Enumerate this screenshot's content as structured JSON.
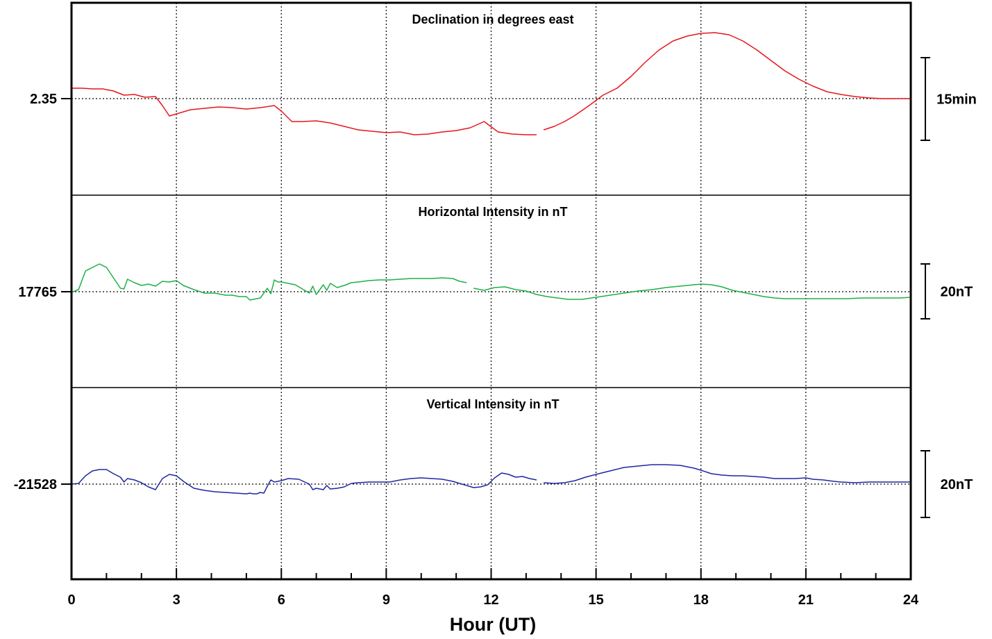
{
  "chart_data": {
    "type": "line",
    "xlabel": "Hour (UT)",
    "xlim": [
      0,
      24
    ],
    "x_ticks": [
      "0",
      "3",
      "6",
      "9",
      "12",
      "15",
      "18",
      "21",
      "24"
    ],
    "grid": true,
    "panels": [
      {
        "title": "Declination in degrees east",
        "baseline_label": "2.35",
        "scale_label": "15min",
        "color": "#e8141c",
        "series": [
          {
            "x": [
              0,
              0.3,
              0.6,
              0.9,
              1.2,
              1.5,
              1.8,
              2.1,
              2.4,
              2.6,
              2.8,
              3.0,
              3.4,
              3.8,
              4.2,
              4.6,
              5.0,
              5.4,
              5.8,
              6.0,
              6.3,
              6.6,
              7.0,
              7.4,
              7.8,
              8.2,
              8.6,
              9.0,
              9.4,
              9.8,
              10.2,
              10.6,
              11.0,
              11.4,
              11.8,
              12.2,
              12.6,
              13.0,
              13.3
            ],
            "y": [
              15,
              15,
              14,
              14,
              11,
              5,
              6,
              2,
              3,
              -10,
              -25,
              -22,
              -16,
              -14,
              -12,
              -13,
              -15,
              -13,
              -10,
              -18,
              -33,
              -33,
              -32,
              -35,
              -40,
              -45,
              -47,
              -49,
              -48,
              -52,
              -51,
              -48,
              -46,
              -42,
              -33,
              -48,
              -51,
              -52,
              -52
            ]
          },
          {
            "x": [
              13.5,
              13.8,
              14.1,
              14.4,
              14.8,
              15.2,
              15.6,
              16.0,
              16.4,
              16.8,
              17.2,
              17.6,
              18.0,
              18.4,
              18.8,
              19.2,
              19.6,
              20.0,
              20.4,
              20.8,
              21.2,
              21.6,
              22.0,
              22.4,
              22.8,
              23.2,
              23.6,
              24.0
            ],
            "y": [
              -45,
              -40,
              -33,
              -24,
              -10,
              5,
              15,
              32,
              52,
              70,
              83,
              90,
              94,
              95,
              92,
              83,
              70,
              55,
              40,
              28,
              18,
              10,
              6,
              3,
              1,
              0,
              0,
              0
            ]
          }
        ]
      },
      {
        "title": "Horizontal Intensity in nT",
        "baseline_label": "17765",
        "scale_label": "20nT",
        "color": "#1db045",
        "series": [
          {
            "x": [
              0,
              0.2,
              0.4,
              0.6,
              0.8,
              1.0,
              1.2,
              1.4,
              1.5,
              1.6,
              1.8,
              2.0,
              2.2,
              2.4,
              2.6,
              2.8,
              3.0,
              3.2,
              3.5,
              3.8,
              4.1,
              4.4,
              4.6,
              4.8,
              5.0,
              5.1,
              5.2,
              5.3,
              5.4,
              5.5,
              5.6,
              5.7,
              5.8,
              5.9,
              6.0,
              6.2,
              6.4,
              6.6,
              6.8,
              6.9,
              7.0,
              7.2,
              7.3,
              7.4,
              7.6,
              7.8,
              8.0,
              8.2,
              8.5,
              8.8,
              9.1,
              9.4,
              9.7,
              10.0,
              10.3,
              10.6,
              10.9,
              11.1,
              11.3
            ],
            "y": [
              -1,
              3,
              30,
              35,
              40,
              35,
              20,
              5,
              4,
              18,
              13,
              9,
              11,
              8,
              15,
              14,
              16,
              9,
              3,
              -2,
              -2,
              -5,
              -5,
              -7,
              -7,
              -12,
              -11,
              -10,
              -9,
              -2,
              5,
              -3,
              17,
              14,
              14,
              12,
              10,
              4,
              -2,
              8,
              -4,
              10,
              2,
              12,
              6,
              9,
              13,
              14,
              16,
              17,
              17,
              18,
              19,
              19,
              19,
              20,
              19,
              15,
              13
            ]
          },
          {
            "x": [
              11.5,
              11.8,
              12.1,
              12.4,
              12.7,
              13.0,
              13.3,
              13.6,
              13.9,
              14.2,
              14.6,
              15.0,
              15.4,
              15.8,
              16.2,
              16.6,
              17.0,
              17.4,
              17.8,
              18.0,
              18.3,
              18.6,
              18.9,
              19.2,
              19.5,
              19.8,
              20.1,
              20.4,
              20.7,
              21.0,
              21.4,
              21.8,
              22.2,
              22.6,
              23.0,
              23.4,
              23.7,
              24.0
            ],
            "y": [
              5,
              2,
              6,
              7,
              3,
              1,
              -4,
              -7,
              -9,
              -11,
              -11,
              -8,
              -5,
              -2,
              1,
              3,
              6,
              8,
              10,
              11,
              10,
              7,
              2,
              -1,
              -4,
              -7,
              -9,
              -10,
              -10,
              -10,
              -10,
              -10,
              -10,
              -9,
              -9,
              -9,
              -9,
              -8
            ]
          }
        ]
      },
      {
        "title": "Vertical Intensity in nT",
        "baseline_label": "-21528",
        "scale_label": "20nT",
        "color": "#1d27a0",
        "series": [
          {
            "x": [
              0,
              0.2,
              0.4,
              0.6,
              0.8,
              1.0,
              1.2,
              1.4,
              1.5,
              1.6,
              1.8,
              2.0,
              2.2,
              2.4,
              2.6,
              2.8,
              3.0,
              3.2,
              3.5,
              3.8,
              4.1,
              4.4,
              4.7,
              5.0,
              5.1,
              5.2,
              5.3,
              5.4,
              5.5,
              5.6,
              5.7,
              5.8,
              6.0,
              6.2,
              6.5,
              6.8,
              6.9,
              7.0,
              7.2,
              7.3,
              7.4,
              7.6,
              7.8,
              8.0,
              8.2,
              8.5,
              8.8,
              9.1,
              9.4,
              9.7,
              10.0,
              10.3,
              10.6,
              10.9,
              11.1,
              11.3,
              11.5,
              11.7,
              11.9,
              12.1,
              12.3,
              12.5,
              12.7,
              12.9,
              13.1,
              13.3
            ],
            "y": [
              0,
              1,
              12,
              19,
              21,
              21,
              15,
              10,
              3,
              8,
              6,
              2,
              -4,
              -8,
              8,
              14,
              12,
              4,
              -6,
              -9,
              -11,
              -12,
              -13,
              -14,
              -13,
              -14,
              -14,
              -12,
              -13,
              -3,
              6,
              3,
              5,
              8,
              7,
              0,
              -8,
              -6,
              -8,
              -2,
              -7,
              -6,
              -4,
              1,
              2,
              3,
              3,
              3,
              6,
              8,
              9,
              8,
              7,
              4,
              1,
              -2,
              -5,
              -4,
              -1,
              9,
              16,
              14,
              10,
              11,
              8,
              6
            ]
          },
          {
            "x": [
              13.5,
              13.8,
              14.1,
              14.4,
              14.7,
              15.0,
              15.4,
              15.8,
              16.2,
              16.6,
              17.0,
              17.4,
              17.8,
              18.0,
              18.3,
              18.6,
              18.9,
              19.2,
              19.5,
              19.8,
              20.1,
              20.4,
              20.7,
              21.0,
              21.2,
              21.5,
              21.8,
              22.0,
              22.4,
              22.8,
              23.2,
              23.6,
              24.0
            ],
            "y": [
              2,
              1,
              2,
              5,
              10,
              14,
              19,
              24,
              26,
              28,
              28,
              27,
              23,
              20,
              15,
              13,
              12,
              12,
              11,
              10,
              8,
              8,
              8,
              9,
              7,
              6,
              4,
              3,
              2,
              3,
              3,
              3,
              3
            ]
          }
        ]
      }
    ]
  }
}
